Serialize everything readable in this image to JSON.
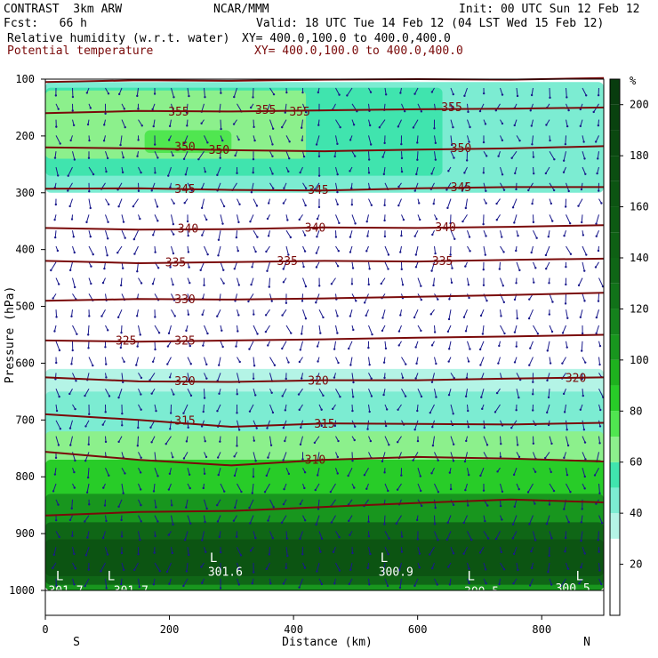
{
  "header": {
    "model": "CONTRAST  3km ARW",
    "org": "NCAR/MMM",
    "init": "Init: 00 UTC Sun 12 Feb 12",
    "fcst": "Fcst:   66 h",
    "valid": "Valid: 18 UTC Tue 14 Feb 12 (04 LST Wed 15 Feb 12)",
    "field1": "Relative humidity (w.r.t. water)",
    "field1_xy": "XY= 400.0,100.0 to 400.0,400.0",
    "field2": "Potential temperature",
    "field2_xy": "XY= 400.0,100.0 to 400.0,400.0"
  },
  "colors": {
    "theta": "#7a0a0a",
    "wind": "#1a1a8c",
    "text": "#000000"
  },
  "chart_data": {
    "type": "heatmap",
    "xlabel": "Distance (km)",
    "ylabel": "Pressure (hPa)",
    "xlim": [
      0,
      900
    ],
    "ylim": [
      1000,
      100
    ],
    "x_ticks": [
      0,
      200,
      400,
      600,
      800
    ],
    "y_ticks": [
      100,
      200,
      300,
      400,
      500,
      600,
      700,
      800,
      900,
      1000
    ],
    "x_end_labels": {
      "left": "S",
      "right": "N"
    },
    "colorbar": {
      "unit": "%",
      "ticks": [
        20,
        40,
        60,
        80,
        100,
        120,
        140,
        160,
        180,
        200
      ],
      "levels": [
        {
          "value": 0,
          "color": "#ffffff"
        },
        {
          "value": 20,
          "color": "#ffffff"
        },
        {
          "value": 30,
          "color": "#b4f4e6"
        },
        {
          "value": 40,
          "color": "#7cecd2"
        },
        {
          "value": 50,
          "color": "#40e4ae"
        },
        {
          "value": 60,
          "color": "#8cf08c"
        },
        {
          "value": 70,
          "color": "#50e650"
        },
        {
          "value": 80,
          "color": "#28cc28"
        },
        {
          "value": 90,
          "color": "#1eb21e"
        },
        {
          "value": 100,
          "color": "#18961e"
        },
        {
          "value": 110,
          "color": "#14821c"
        },
        {
          "value": 120,
          "color": "#117219"
        },
        {
          "value": 130,
          "color": "#0f6616"
        },
        {
          "value": 140,
          "color": "#0e6014"
        },
        {
          "value": 150,
          "color": "#0d5a13"
        },
        {
          "value": 160,
          "color": "#0c5412"
        },
        {
          "value": 170,
          "color": "#0b4e11"
        },
        {
          "value": 180,
          "color": "#0a4810"
        },
        {
          "value": 190,
          "color": "#09420f"
        },
        {
          "value": 200,
          "color": "#083c0e"
        }
      ]
    },
    "humidity_regions": [
      {
        "level": 40,
        "x0": 0,
        "x1": 900,
        "p0": 105,
        "p1": 300
      },
      {
        "level": 50,
        "x0": 0,
        "x1": 640,
        "p0": 115,
        "p1": 270
      },
      {
        "level": 60,
        "x0": 0,
        "x1": 420,
        "p0": 120,
        "p1": 240
      },
      {
        "level": 70,
        "x0": 160,
        "x1": 300,
        "p0": 190,
        "p1": 230
      },
      {
        "level": 30,
        "x0": 0,
        "x1": 900,
        "p0": 610,
        "p1": 700
      },
      {
        "level": 40,
        "x0": 0,
        "x1": 900,
        "p0": 650,
        "p1": 740
      },
      {
        "level": 60,
        "x0": 0,
        "x1": 900,
        "p0": 720,
        "p1": 1000
      },
      {
        "level": 80,
        "x0": 0,
        "x1": 900,
        "p0": 770,
        "p1": 1000
      },
      {
        "level": 100,
        "x0": 0,
        "x1": 900,
        "p0": 830,
        "p1": 1000
      },
      {
        "level": 130,
        "x0": 0,
        "x1": 900,
        "p0": 880,
        "p1": 990
      },
      {
        "level": 160,
        "x0": 0,
        "x1": 900,
        "p0": 910,
        "p1": 975
      }
    ],
    "theta_contours": [
      {
        "value": 355,
        "points": [
          [
            0,
            105
          ],
          [
            150,
            102
          ],
          [
            300,
            103
          ],
          [
            450,
            101
          ],
          [
            600,
            100
          ],
          [
            750,
            101
          ],
          [
            900,
            98
          ]
        ]
      },
      {
        "value": 355,
        "points": [
          [
            0,
            160
          ],
          [
            150,
            156
          ],
          [
            300,
            157
          ],
          [
            450,
            155
          ],
          [
            600,
            153
          ],
          [
            750,
            152
          ],
          [
            900,
            150
          ]
        ]
      },
      {
        "value": 350,
        "points": [
          [
            0,
            220
          ],
          [
            150,
            222
          ],
          [
            300,
            225
          ],
          [
            450,
            227
          ],
          [
            600,
            224
          ],
          [
            750,
            222
          ],
          [
            900,
            218
          ]
        ]
      },
      {
        "value": 345,
        "points": [
          [
            0,
            293
          ],
          [
            150,
            292
          ],
          [
            300,
            295
          ],
          [
            450,
            296
          ],
          [
            600,
            292
          ],
          [
            750,
            290
          ],
          [
            900,
            290
          ]
        ]
      },
      {
        "value": 340,
        "points": [
          [
            0,
            362
          ],
          [
            150,
            365
          ],
          [
            300,
            364
          ],
          [
            450,
            361
          ],
          [
            600,
            362
          ],
          [
            750,
            360
          ],
          [
            900,
            357
          ]
        ]
      },
      {
        "value": 335,
        "points": [
          [
            0,
            420
          ],
          [
            150,
            424
          ],
          [
            300,
            422
          ],
          [
            450,
            420
          ],
          [
            600,
            421
          ],
          [
            750,
            418
          ],
          [
            900,
            416
          ]
        ]
      },
      {
        "value": 330,
        "points": [
          [
            0,
            490
          ],
          [
            150,
            487
          ],
          [
            300,
            488
          ],
          [
            450,
            486
          ],
          [
            600,
            483
          ],
          [
            750,
            480
          ],
          [
            900,
            476
          ]
        ]
      },
      {
        "value": 325,
        "points": [
          [
            0,
            560
          ],
          [
            150,
            562
          ],
          [
            300,
            560
          ],
          [
            450,
            558
          ],
          [
            600,
            555
          ],
          [
            750,
            553
          ],
          [
            900,
            550
          ]
        ]
      },
      {
        "value": 320,
        "points": [
          [
            0,
            625
          ],
          [
            150,
            632
          ],
          [
            300,
            633
          ],
          [
            450,
            630
          ],
          [
            600,
            630
          ],
          [
            750,
            627
          ],
          [
            900,
            625
          ]
        ]
      },
      {
        "value": 315,
        "points": [
          [
            0,
            690
          ],
          [
            150,
            700
          ],
          [
            300,
            712
          ],
          [
            450,
            706
          ],
          [
            600,
            707
          ],
          [
            750,
            708
          ],
          [
            900,
            705
          ]
        ]
      },
      {
        "value": 310,
        "points": [
          [
            0,
            756
          ],
          [
            150,
            770
          ],
          [
            300,
            780
          ],
          [
            450,
            770
          ],
          [
            600,
            765
          ],
          [
            750,
            768
          ],
          [
            900,
            773
          ]
        ]
      },
      {
        "value": 305,
        "points": [
          [
            0,
            868
          ],
          [
            150,
            862
          ],
          [
            300,
            860
          ],
          [
            450,
            853
          ],
          [
            600,
            846
          ],
          [
            750,
            840
          ],
          [
            900,
            845
          ]
        ]
      }
    ],
    "contour_labels": [
      {
        "text": "355",
        "x": 215,
        "p": 158
      },
      {
        "text": "355",
        "x": 355,
        "p": 155
      },
      {
        "text": "355",
        "x": 410,
        "p": 158
      },
      {
        "text": "355",
        "x": 655,
        "p": 150
      },
      {
        "text": "350",
        "x": 225,
        "p": 220
      },
      {
        "text": "350",
        "x": 280,
        "p": 225
      },
      {
        "text": "350",
        "x": 670,
        "p": 222
      },
      {
        "text": "345",
        "x": 225,
        "p": 294
      },
      {
        "text": "345",
        "x": 440,
        "p": 296
      },
      {
        "text": "345",
        "x": 670,
        "p": 291
      },
      {
        "text": "340",
        "x": 230,
        "p": 364
      },
      {
        "text": "340",
        "x": 435,
        "p": 362
      },
      {
        "text": "340",
        "x": 645,
        "p": 361
      },
      {
        "text": "335",
        "x": 210,
        "p": 423
      },
      {
        "text": "335",
        "x": 390,
        "p": 421
      },
      {
        "text": "335",
        "x": 640,
        "p": 421
      },
      {
        "text": "330",
        "x": 225,
        "p": 488
      },
      {
        "text": "325",
        "x": 130,
        "p": 561
      },
      {
        "text": "325",
        "x": 225,
        "p": 561
      },
      {
        "text": "320",
        "x": 225,
        "p": 632
      },
      {
        "text": "320",
        "x": 440,
        "p": 631
      },
      {
        "text": "320",
        "x": 855,
        "p": 627
      },
      {
        "text": "315",
        "x": 225,
        "p": 702
      },
      {
        "text": "315",
        "x": 450,
        "p": 707
      },
      {
        "text": "310",
        "x": 435,
        "p": 771
      }
    ],
    "pressure_marks": [
      {
        "text": "L",
        "x": 17,
        "p": 982
      },
      {
        "text": "L",
        "x": 100,
        "p": 982
      },
      {
        "text": "L",
        "x": 265,
        "p": 950
      },
      {
        "text": "L",
        "x": 540,
        "p": 950
      },
      {
        "text": "L",
        "x": 680,
        "p": 982
      },
      {
        "text": "L",
        "x": 855,
        "p": 982
      }
    ],
    "pressure_labels": [
      {
        "text": "301.7",
        "x": 5,
        "p": 1001
      },
      {
        "text": "301.7",
        "x": 110,
        "p": 1001
      },
      {
        "text": "301.6",
        "x": 262,
        "p": 968
      },
      {
        "text": "300.9",
        "x": 537,
        "p": 968
      },
      {
        "text": "300.5",
        "x": 675,
        "p": 1002
      },
      {
        "text": "300.5",
        "x": 822,
        "p": 997
      }
    ]
  }
}
